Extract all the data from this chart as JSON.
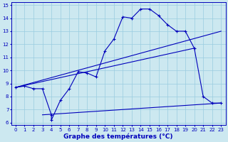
{
  "xlabel": "Graphe des températures (°C)",
  "background_color": "#cce8f0",
  "grid_color": "#99cce0",
  "line_color": "#0000bb",
  "xlim": [
    -0.5,
    23.5
  ],
  "ylim": [
    5.8,
    15.2
  ],
  "xticks": [
    0,
    1,
    2,
    3,
    4,
    5,
    6,
    7,
    8,
    9,
    10,
    11,
    12,
    13,
    14,
    15,
    16,
    17,
    18,
    19,
    20,
    21,
    22,
    23
  ],
  "yticks": [
    6,
    7,
    8,
    9,
    10,
    11,
    12,
    13,
    14,
    15
  ],
  "series1_x": [
    0,
    1,
    2,
    3,
    4,
    4,
    5,
    6,
    7,
    8,
    9,
    10,
    11,
    12,
    13,
    14,
    15,
    16,
    17,
    18,
    19,
    20,
    21,
    22,
    23
  ],
  "series1_y": [
    8.7,
    8.8,
    8.6,
    8.6,
    6.6,
    6.2,
    7.7,
    8.6,
    9.9,
    9.8,
    9.5,
    11.5,
    12.4,
    14.1,
    14.0,
    14.7,
    14.7,
    14.2,
    13.5,
    13.0,
    13.0,
    11.7,
    8.0,
    7.5,
    7.5
  ],
  "series2_x": [
    0,
    23
  ],
  "series2_y": [
    8.7,
    13.0
  ],
  "series3_x": [
    0,
    20
  ],
  "series3_y": [
    8.7,
    11.7
  ],
  "series4_x": [
    3,
    23
  ],
  "series4_y": [
    6.6,
    7.5
  ],
  "xlabel_fontsize": 6.5,
  "tick_fontsize": 5.0
}
